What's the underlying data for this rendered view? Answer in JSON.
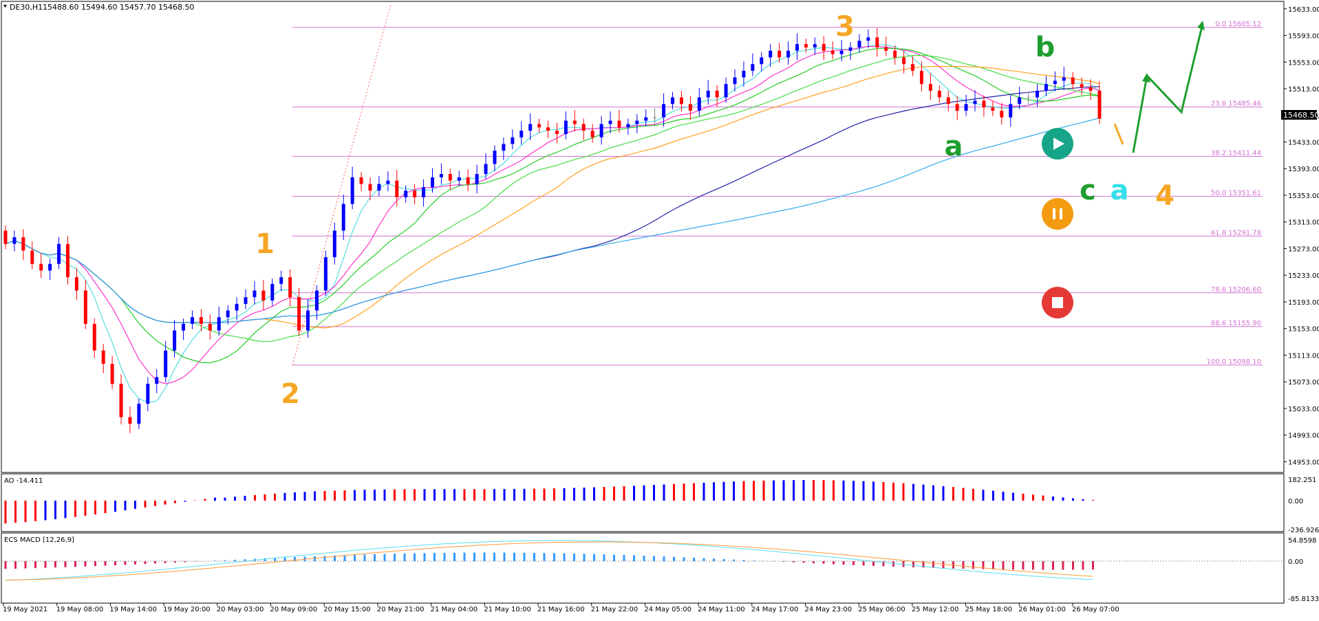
{
  "header": {
    "symbol_label": "DE30,H1",
    "ohlc_label": "15488.60  15494.60  15457.70  15468.50"
  },
  "price_axis": {
    "ticks": [
      "15633.00",
      "15593.00",
      "15553.00",
      "15513.00",
      "15473.00",
      "15433.00",
      "15393.00",
      "15353.00",
      "15313.00",
      "15273.00",
      "15233.00",
      "15193.00",
      "15153.00",
      "15113.00",
      "15073.00",
      "15033.00",
      "14993.00",
      "14953.00"
    ],
    "current_price": "15468.50"
  },
  "ao_panel": {
    "title": "AO -14.411",
    "ticks": [
      "182.251",
      "0.00",
      "-236.926"
    ]
  },
  "macd_panel": {
    "title": "ECS MACD [12,26,9]",
    "ticks": [
      "54.8598",
      "0.00",
      "-85.8133"
    ]
  },
  "time_axis": {
    "labels": [
      "19 May 2021",
      "19 May 08:00",
      "19 May 14:00",
      "19 May 20:00",
      "20 May 03:00",
      "20 May 09:00",
      "20 May 15:00",
      "20 May 21:00",
      "21 May 04:00",
      "21 May 10:00",
      "21 May 16:00",
      "21 May 22:00",
      "24 May 05:00",
      "24 May 11:00",
      "24 May 17:00",
      "24 May 23:00",
      "25 May 06:00",
      "25 May 12:00",
      "25 May 18:00",
      "26 May 01:00",
      "26 May 07:00"
    ]
  },
  "fib_levels": [
    {
      "label": "0.0 15605.12"
    },
    {
      "label": "23.6 15485.46"
    },
    {
      "label": "38.2 15411.44"
    },
    {
      "label": "50.0 15351.61"
    },
    {
      "label": "61.8 15291.78"
    },
    {
      "label": "78.6 15206.60"
    },
    {
      "label": "88.6 15155.90"
    },
    {
      "label": "100.0 15098.10"
    }
  ],
  "wave_labels": [
    {
      "text": "1",
      "color": "#f5a623"
    },
    {
      "text": "2",
      "color": "#f5a623"
    },
    {
      "text": "3",
      "color": "#f5a623"
    },
    {
      "text": "4",
      "color": "#f5a623"
    },
    {
      "text": "a",
      "color": "#1e9e2e"
    },
    {
      "text": "b",
      "color": "#1e9e2e"
    },
    {
      "text": "c",
      "color": "#1e9e2e"
    },
    {
      "text": "a",
      "color": "#35e0e8"
    }
  ],
  "signal_icons": [
    {
      "name": "play-icon",
      "color": "#17a589"
    },
    {
      "name": "pause-icon",
      "color": "#f39c12"
    },
    {
      "name": "stop-icon",
      "color": "#e53935"
    }
  ],
  "colors": {
    "bull": "#0000ff",
    "bear": "#ff0000",
    "neutral": "#808080",
    "fib": "#d070d0",
    "grid_border": "#000000"
  },
  "chart_data": {
    "type": "candlestick",
    "symbol": "DE30",
    "timeframe": "H1",
    "ylim": [
      14940,
      15640
    ],
    "last_price": 15468.5,
    "start_price": 15300,
    "closes": [
      15280,
      15290,
      15270,
      15250,
      15240,
      15250,
      15280,
      15230,
      15210,
      15160,
      15120,
      15100,
      15070,
      15020,
      15010,
      15040,
      15070,
      15080,
      15120,
      15150,
      15160,
      15170,
      15160,
      15150,
      15170,
      15180,
      15190,
      15200,
      15210,
      15195,
      15220,
      15230,
      15200,
      15150,
      15180,
      15210,
      15260,
      15300,
      15340,
      15380,
      15370,
      15360,
      15370,
      15375,
      15350,
      15360,
      15350,
      15365,
      15380,
      15385,
      15375,
      15380,
      15370,
      15385,
      15400,
      15420,
      15430,
      15440,
      15450,
      15460,
      15455,
      15450,
      15445,
      15465,
      15460,
      15450,
      15440,
      15460,
      15465,
      15455,
      15460,
      15465,
      15470,
      15470,
      15490,
      15500,
      15490,
      15480,
      15500,
      15510,
      15500,
      15520,
      15530,
      15540,
      15550,
      15560,
      15570,
      15560,
      15570,
      15580,
      15575,
      15580,
      15570,
      15565,
      15570,
      15575,
      15585,
      15590,
      15575,
      15570,
      15560,
      15550,
      15540,
      15520,
      15510,
      15500,
      15490,
      15480,
      15490,
      15495,
      15485,
      15480,
      15470,
      15490,
      15500,
      15500,
      15510,
      15520,
      15525,
      15530,
      15520,
      15515,
      15510,
      15468
    ]
  }
}
